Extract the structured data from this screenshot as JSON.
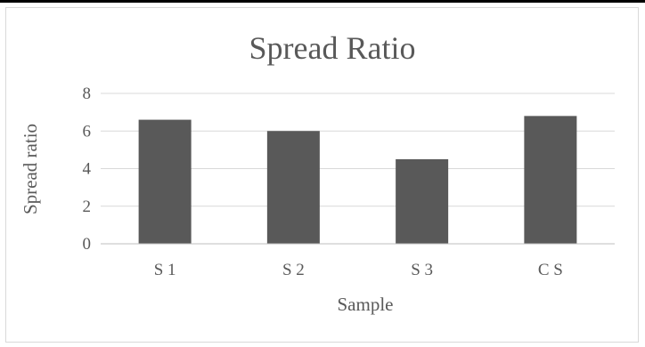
{
  "chart_data": {
    "type": "bar",
    "title": "Spread Ratio",
    "xlabel": "Sample",
    "ylabel": "Spread ratio",
    "categories": [
      "S 1",
      "S 2",
      "S 3",
      "C S"
    ],
    "values": [
      6.6,
      6.0,
      4.5,
      6.8
    ],
    "ylim": [
      0,
      8
    ],
    "yticks": [
      0,
      2,
      4,
      6,
      8
    ],
    "grid": true,
    "legend": "none",
    "colors": {
      "bar": "#595959",
      "grid": "#d9d9d9",
      "text": "#595959",
      "axis": "#bfbfbf"
    }
  }
}
